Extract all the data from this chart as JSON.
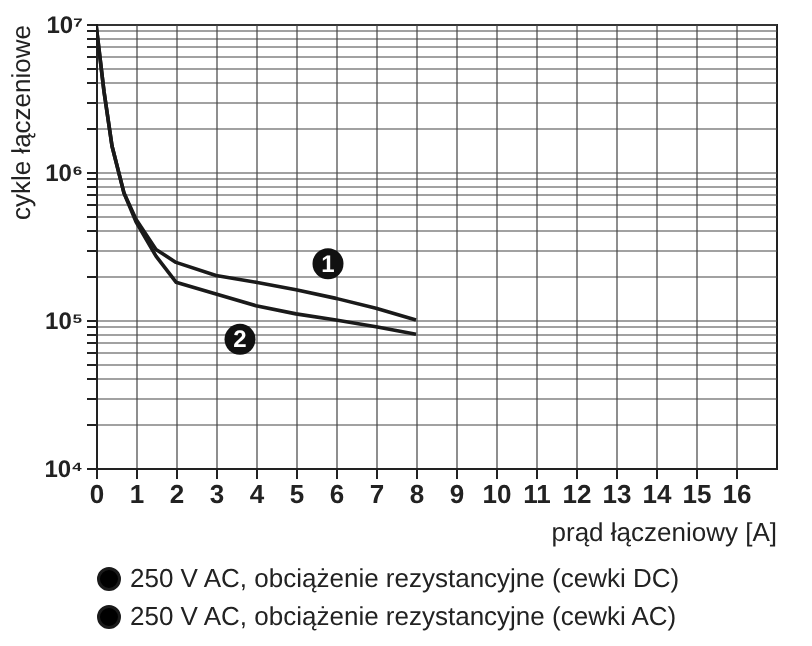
{
  "chart_data": {
    "type": "line",
    "xlabel": "prąd łączeniowy [A]",
    "ylabel": "cykle łączeniowe",
    "x": [
      0,
      0.2,
      0.4,
      0.7,
      1,
      1.5,
      2,
      3,
      4,
      5,
      6,
      7,
      8
    ],
    "series": [
      {
        "name": "250 V AC, obciążenie rezystancyjne (cewki DC)",
        "color": "#1a1a1a",
        "values": [
          10000000,
          3500000,
          1500000,
          720000,
          480000,
          300000,
          245000,
          200000,
          180000,
          160000,
          140000,
          120000,
          100000
        ]
      },
      {
        "name": "250 V AC, obciążenie rezystancyjne (cewki AC)",
        "color": "#1a1a1a",
        "values": [
          10000000,
          3500000,
          1500000,
          720000,
          460000,
          270000,
          180000,
          150000,
          125000,
          110000,
          100000,
          90000,
          80000
        ]
      }
    ],
    "annotations": [
      {
        "text": "1",
        "x": 5.8,
        "y": 240000
      },
      {
        "text": "2",
        "x": 3.6,
        "y": 74000
      }
    ],
    "log": "y",
    "xlim": [
      0,
      17
    ],
    "ylim": [
      10000,
      10000000
    ],
    "xticks": [
      0,
      1,
      2,
      3,
      4,
      5,
      6,
      7,
      8,
      9,
      10,
      11,
      12,
      13,
      14,
      15,
      16
    ],
    "yticks": [
      {
        "value": 10000,
        "label": "10⁴"
      },
      {
        "value": 20000,
        "label": null
      },
      {
        "value": 30000,
        "label": null
      },
      {
        "value": 40000,
        "label": null
      },
      {
        "value": 50000,
        "label": null
      },
      {
        "value": 60000,
        "label": null
      },
      {
        "value": 70000,
        "label": null
      },
      {
        "value": 80000,
        "label": null
      },
      {
        "value": 90000,
        "label": null
      },
      {
        "value": 100000,
        "label": "10⁵"
      },
      {
        "value": 200000,
        "label": null
      },
      {
        "value": 300000,
        "label": null
      },
      {
        "value": 400000,
        "label": null
      },
      {
        "value": 500000,
        "label": null
      },
      {
        "value": 600000,
        "label": null
      },
      {
        "value": 700000,
        "label": null
      },
      {
        "value": 800000,
        "label": null
      },
      {
        "value": 900000,
        "label": null
      },
      {
        "value": 1000000,
        "label": "10⁶"
      },
      {
        "value": 2000000,
        "label": null
      },
      {
        "value": 3000000,
        "label": null
      },
      {
        "value": 4000000,
        "label": null
      },
      {
        "value": 5000000,
        "label": null
      },
      {
        "value": 6000000,
        "label": null
      },
      {
        "value": 7000000,
        "label": null
      },
      {
        "value": 8000000,
        "label": null
      },
      {
        "value": 9000000,
        "label": null
      },
      {
        "value": 10000000,
        "label": "10⁷"
      }
    ],
    "grid": true,
    "legend": "bottom",
    "marker": "none",
    "line_style": "solid"
  }
}
